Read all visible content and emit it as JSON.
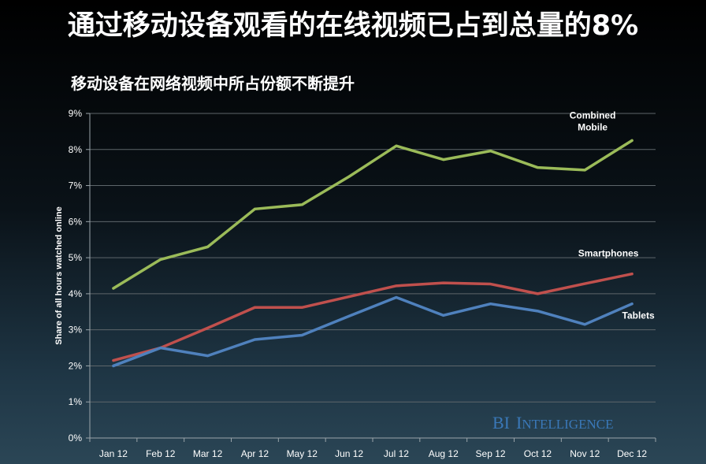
{
  "header": {
    "title": "通过移动设备观看的在线视频已占到总量的8%",
    "subtitle": "移动设备在网络视频中所占份额不断提升"
  },
  "watermark": {
    "lead": "BI",
    "rest_big": "I",
    "rest_small": "NTELLIGENCE"
  },
  "chart_data": {
    "type": "line",
    "categories": [
      "Jan 12",
      "Feb 12",
      "Mar 12",
      "Apr 12",
      "May 12",
      "Jun 12",
      "Jul 12",
      "Aug 12",
      "Sep 12",
      "Oct 12",
      "Nov 12",
      "Dec 12"
    ],
    "ylabel": "Share of all hours watched online",
    "ylim": [
      0,
      9
    ],
    "yticks": [
      "0%",
      "1%",
      "2%",
      "3%",
      "4%",
      "5%",
      "6%",
      "7%",
      "8%",
      "9%"
    ],
    "grid": "horizontal",
    "series": [
      {
        "name": "Combined Mobile",
        "label_lines": [
          "Combined",
          "Mobile"
        ],
        "color": "#9bbb59",
        "values": [
          4.15,
          4.95,
          5.3,
          6.35,
          6.47,
          7.25,
          8.1,
          7.72,
          7.96,
          7.5,
          7.43,
          8.25
        ]
      },
      {
        "name": "Smartphones",
        "label_lines": [
          "Smartphones"
        ],
        "color": "#c0504d",
        "values": [
          2.15,
          2.5,
          3.05,
          3.62,
          3.62,
          3.92,
          4.22,
          4.3,
          4.27,
          4.0,
          4.28,
          4.55
        ]
      },
      {
        "name": "Tablets",
        "label_lines": [
          "Tablets"
        ],
        "color": "#4f81bd",
        "values": [
          2.0,
          2.5,
          2.28,
          2.73,
          2.85,
          3.38,
          3.9,
          3.4,
          3.72,
          3.52,
          3.15,
          3.72
        ]
      }
    ]
  }
}
